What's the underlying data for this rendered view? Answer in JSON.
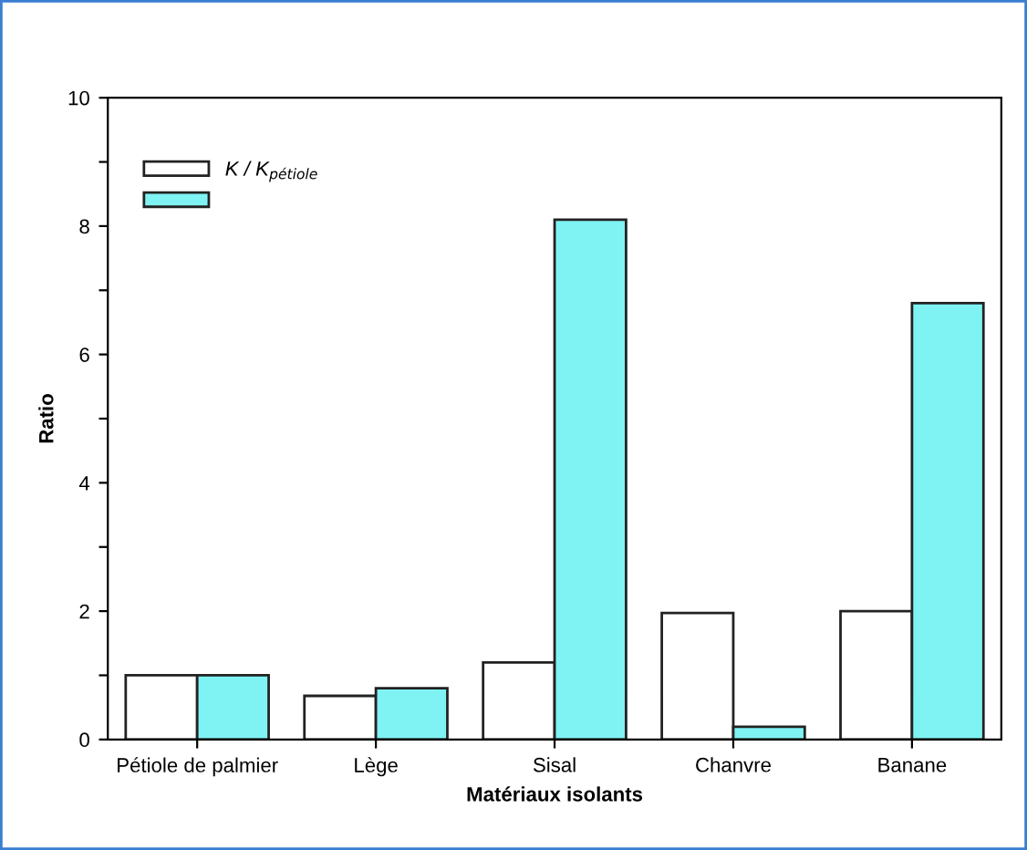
{
  "chart_data": {
    "type": "bar",
    "xlabel": "Matériaux isolants",
    "ylabel": "Ratio",
    "categories": [
      "Pétiole de palmier",
      "Lège",
      "Sisal",
      "Chanvre",
      "Banane"
    ],
    "series": [
      {
        "name": "K / K$_{pétiole}$",
        "color": "#ffffff",
        "values": [
          1.0,
          0.68,
          1.2,
          1.97,
          2.0
        ]
      },
      {
        "color": "#7ff3f3",
        "values": [
          1.0,
          0.8,
          8.1,
          0.2,
          6.8
        ]
      }
    ],
    "ylim": [
      0,
      10
    ],
    "yticks": [
      0,
      {
        "value": 1,
        "label": null
      },
      2,
      {
        "value": 3,
        "label": null
      },
      4,
      {
        "value": 5,
        "label": null
      },
      6,
      {
        "value": 7,
        "label": null
      },
      8,
      {
        "value": 9,
        "label": null
      },
      10
    ],
    "grid": false,
    "legend": "top left"
  }
}
